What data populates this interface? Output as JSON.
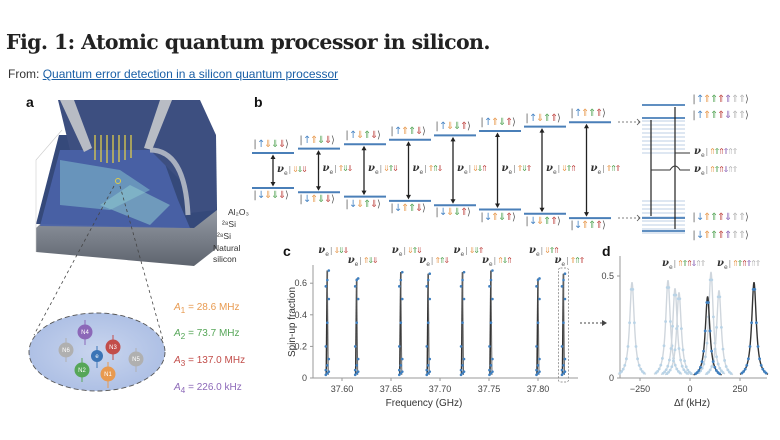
{
  "figure": {
    "title": "Fig. 1: Atomic quantum processor in silicon.",
    "from_label": "From:",
    "source_link": "Quantum error detection in a silicon quantum processor"
  },
  "panels": {
    "a": "a",
    "b": "b",
    "c": "c",
    "d": "d"
  },
  "colors": {
    "electron": "#4a86c5",
    "n1": "#e89a50",
    "n2": "#56a658",
    "n3": "#c24d4a",
    "n4": "#8c68b8",
    "n5": "#b8b8b8",
    "n6": "#b8b8b8",
    "level": "#4a7fb8",
    "data_point": "#3f7fbf"
  },
  "panel_a": {
    "layers": [
      "Al2O3",
      "28Si",
      "28Si",
      "Natural silicon"
    ],
    "layer_display": {
      "al2o3": "Al₂O₃",
      "si28_top": "²⁸Si",
      "si28_bottom": "²⁸Si",
      "natural": "Natural",
      "silicon": "silicon"
    },
    "nuclei": [
      "N1",
      "N2",
      "N3",
      "N4",
      "N5",
      "N6"
    ],
    "electron": "e",
    "hyperfine": [
      {
        "symbol": "A",
        "index": "1",
        "value": "= 28.6 MHz"
      },
      {
        "symbol": "A",
        "index": "2",
        "value": "= 73.7 MHz"
      },
      {
        "symbol": "A",
        "index": "3",
        "value": "= 137.0 MHz"
      },
      {
        "symbol": "A",
        "index": "4",
        "value": "= 226.0 kHz"
      }
    ]
  },
  "panel_b": {
    "nu_symbol": "ν",
    "nu_sub": "e",
    "pairs": [
      {
        "upper": "↑⇓⇓⇓",
        "lower": "↓⇓⇓⇓",
        "nu": "⇓⇓⇓"
      },
      {
        "upper": "↑⇑⇓⇓",
        "lower": "↓⇑⇓⇓",
        "nu": "⇑⇓⇓"
      },
      {
        "upper": "↑⇓⇑⇓",
        "lower": "↓⇓⇑⇓",
        "nu": "⇓⇑⇓"
      },
      {
        "upper": "↑⇑⇑⇓",
        "lower": "↓⇑⇑⇓",
        "nu": "⇑⇑⇓"
      },
      {
        "upper": "↑⇓⇓⇑",
        "lower": "↓⇓⇓⇑",
        "nu": "⇓⇓⇑"
      },
      {
        "upper": "↑⇑⇓⇑",
        "lower": "↓⇑⇓⇑",
        "nu": "⇑⇓⇑"
      },
      {
        "upper": "↑⇓⇑⇑",
        "lower": "↓⇓⇑⇑",
        "nu": "⇓⇑⇑"
      },
      {
        "upper": "↑⇑⇑⇑",
        "lower": "↓⇑⇑⇑",
        "nu": "⇑⇑⇑"
      }
    ],
    "expanded": {
      "upper_states": [
        "↑⇑⇑⇑⇑⇑⇑",
        "↑⇑⇑⇑⇓⇑⇑"
      ],
      "lower_states": [
        "↓⇑⇑⇑⇓⇑⇑",
        "↓⇑⇑⇑⇑⇑⇑"
      ],
      "nu_labels": [
        "⇑⇑⇑⇑⇑⇑",
        "⇑⇑⇑⇓⇑⇑"
      ]
    }
  },
  "chart_data": [
    {
      "type": "scatter",
      "panel": "c",
      "title": "",
      "xlabel": "Frequency (GHz)",
      "ylabel": "Spin-up fraction",
      "xlim": [
        37.57,
        37.83
      ],
      "ylim": [
        0,
        0.7
      ],
      "xticks": [
        "37.60",
        "37.65",
        "37.70",
        "37.75",
        "37.80"
      ],
      "xtick_values": [
        37.6,
        37.65,
        37.7,
        37.75,
        37.8
      ],
      "yticks": [
        "0",
        "0.2",
        "0.4",
        "0.6"
      ],
      "ytick_values": [
        0,
        0.2,
        0.4,
        0.6
      ],
      "peaks": [
        {
          "label": "⇓⇓⇓",
          "freq": 37.585,
          "height": 0.68
        },
        {
          "label": "⇑⇓⇓",
          "freq": 37.615,
          "height": 0.63
        },
        {
          "label": "⇓⇑⇓",
          "freq": 37.66,
          "height": 0.67
        },
        {
          "label": "⇑⇑⇓",
          "freq": 37.688,
          "height": 0.66
        },
        {
          "label": "⇓⇓⇑",
          "freq": 37.723,
          "height": 0.67
        },
        {
          "label": "⇑⇓⇑",
          "freq": 37.752,
          "height": 0.68
        },
        {
          "label": "⇓⇑⇑",
          "freq": 37.8,
          "height": 0.63
        },
        {
          "label": "⇑⇑⇑",
          "freq": 37.826,
          "height": 0.66
        }
      ],
      "highlighted_peak": 7
    },
    {
      "type": "line",
      "panel": "d",
      "title": "",
      "xlabel": "Δf (kHz)",
      "ylabel": "",
      "xlim": [
        -360,
        390
      ],
      "ylim": [
        0,
        0.6
      ],
      "xticks": [
        "-250",
        "0",
        "250"
      ],
      "xtick_values": [
        -250,
        0,
        250
      ],
      "yticks": [
        "0",
        "0.5"
      ],
      "ytick_values": [
        0,
        0.5
      ],
      "series": [
        {
          "name": "grey-1",
          "center": -290,
          "height": 0.47,
          "highlight": false
        },
        {
          "name": "grey-2",
          "center": -110,
          "height": 0.48,
          "highlight": false
        },
        {
          "name": "grey-3",
          "center": -75,
          "height": 0.44,
          "highlight": false
        },
        {
          "name": "grey-4",
          "center": -55,
          "height": 0.42,
          "highlight": false
        },
        {
          "name": "grey-5",
          "center": 105,
          "height": 0.52,
          "highlight": false
        },
        {
          "name": "grey-6",
          "center": 145,
          "height": 0.43,
          "highlight": false
        },
        {
          "name": "⇑⇑⇑⇓⇑⇑",
          "center": 88,
          "height": 0.4,
          "highlight": true
        },
        {
          "name": "⇑⇑⇑⇑⇑⇑",
          "center": 320,
          "height": 0.47,
          "highlight": true
        }
      ],
      "labels": [
        "⇑⇑⇑⇓⇑⇑",
        "⇑⇑⇑⇑⇑⇑"
      ]
    }
  ]
}
